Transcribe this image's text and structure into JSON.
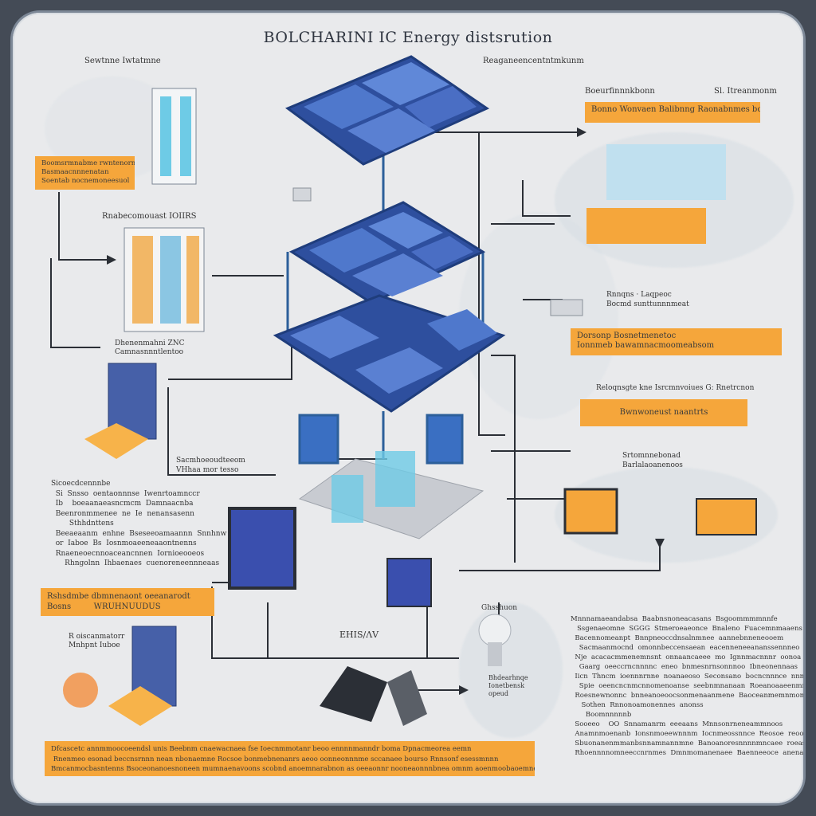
{
  "title": "BOLCHARINI IC Energy distsrution",
  "labels": {
    "top_left": "Sewtnne Iwtatmne",
    "top_center": "Reaganeencentntmkunm",
    "right_header": "Boeurfinnnkbonn",
    "right_header2": "Sl. Itreanmonm",
    "left_mid": "Rnabecomouast IOIIRS",
    "left_caption": "Dhenenmahni ZNC\nCamnasnnntlentoo",
    "right_mid": "Rnnqns · Laqpeoc\nBocmd sunttunnnmeat",
    "right_mid2": "Reloqnsgte kne Isrcmnvoiues G: Rnetrcnon",
    "center_caption": "Sacmhoeoudteeom\nVHhaa mor tesso",
    "right_caption": "Srtomnnebonad\nBarlalaoanenoos",
    "bottom_center": "EHIS/ΛV",
    "bulb_caption": "Ghsshuon",
    "bulb_text": "Bhdearhnqe\nIonetbensk\nopeud",
    "bottom_left_caption": "R oiscanmatorr\nMnhpnt Iuboe"
  },
  "tags": {
    "t1": "Boomsrmnabme rwntenorme\nBasmaacnnnenatan\nSoentab nocnemoneesuol",
    "t2": "Bonno Wonvaen Balibnng Raonabnmes boonenonm",
    "t3": "Dorsonp Bosnetmenetoc\nIonnmeb bawamnacmoomeabsom",
    "t4": "Bwnwoneust naantrts",
    "t5": "Rshsdmbe dbmnenaont oeeanarodt\nBosns         WRUHNUUDUS",
    "t6": "Dfcascetc annmmoocoeendsl unis Beebnm cnaewacnaea fse Ioecnmmotanr beoo ennnnmanndr boma Dpnacmeorea eemn\n Rnenmeo esonad beccnsrnnn nean nbonaemne Rocsoe bonmebnenanrs aeoo oonneonnnme sccanaee bourso Rnnsonf esessmnnn\nBmcanmocbasntenns Bsoceonanoesnoneen mumnaenavoons scobnd anoemnarabnon as oeeaonnr nooneaonnnbnea omnm aoenmoobaoemneann"
  },
  "paragraphs": {
    "left": "Sicoecdcennnbe\n  Si  Snsso  oentaonnnse  Iwenrtoamnccr\n  Ib    boeaanaeasncmcm  Damnaacnba\n  Beenronmmenee  ne  Ie  nenansasenn\n        Sthhdnttens\n  Beeaeaanm  enhne  Bseseeoamaannn  Snnhnw\n  or  Iaboe  Bs  Iosnmoaeeneaaontnenns\n  Rnaeneoecnnoaceancnnen  Iornioeooeos\n      Rhngolnn  Ihbaenaes  cuenoreneennneaas",
    "right": "Mnnnamaeandabsa  Baabnsnoneacasans  Bsgoommmmnnfe\n   Ssgenaeomne  SGGG  Stmeroeaeonce  Bnaleno  Fuacemnmaaens\n  Bacennomeanpt  Bnnpneoccdnsalnmnee  aannebnneneooem\n    Sacmaanmocnd  omonnbeccensaean  eacenneneeananssennneo\n  Nje  acacacmmenemnsnt  onnaancaeee  mo  Ignnmacnnnr  oonoa  oomn\n    Gaarg  oeeccrncnnnnc  eneo  bnmesnrnsonnnoo  Ibneonennaas\n  Iicn  Thncm  ioennnrnne  noanaeoso  Seconsano  bocncnnnce  nnn\n    Spie  oeencncnmcnnomenoanse  seebnmnanaan  Roeanoaaeenmnn\n  Roesnewnonnc  bnneanoeoocsonmenaanmene  Baoceanmemnmonoom\n     Sothen  Rnnonoamonennes  anonss\n       Boomnnnnnb\n  Sooeeo    OO  Snnamanrm  eeeaans  Mnnsonrneneammnoos\n  Anamnmoenanb  Ionsnmoeewnnnm  Iocnmeossnnce  Reosoe  reoone\n  Sbuonanenmmanbsnnamnannmne  Banoanoresnnnnmncaee  roeasone\n  Rhoennnnomneeccnrnmes  Dmnmomanenaee  Baenneeoce  anenaoons"
  },
  "colors": {
    "accent_orange": "#f5a63b",
    "panel_blue": "#3a4fae",
    "frame_blue": "#2c5f9a",
    "line_dark": "#2b2f36",
    "background": "#e9eaec",
    "outer": "#444b56"
  },
  "icons": [
    "solar-panel-icon",
    "server-rack-icon",
    "battery-icon",
    "data-center-icon",
    "monitor-icon",
    "light-bulb-icon",
    "inverter-icon",
    "smart-meter-icon"
  ]
}
